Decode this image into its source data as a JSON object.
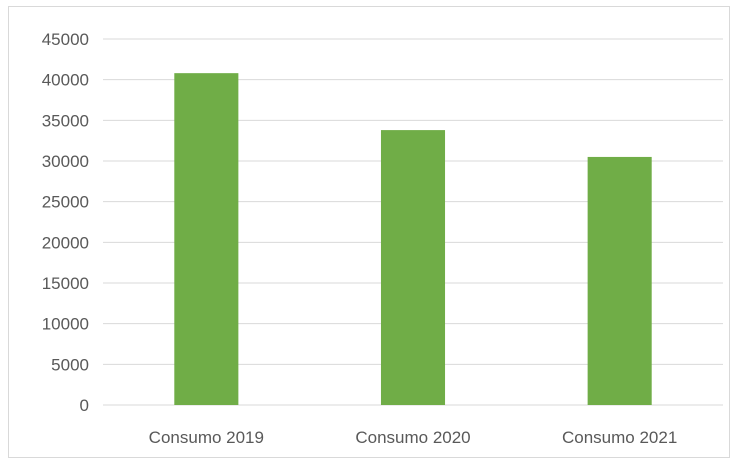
{
  "chart_data": {
    "type": "bar",
    "title": "",
    "xlabel": "",
    "ylabel": "",
    "categories": [
      "Consumo 2019",
      "Consumo 2020",
      "Consumo 2021"
    ],
    "values": [
      40800,
      33800,
      30500
    ],
    "ylim": [
      0,
      45000
    ],
    "yticks": [
      0,
      5000,
      10000,
      15000,
      20000,
      25000,
      30000,
      35000,
      40000,
      45000
    ],
    "grid": true,
    "legend": "none",
    "bar_color": "#70ad47",
    "grid_color": "#d9d9d9"
  }
}
